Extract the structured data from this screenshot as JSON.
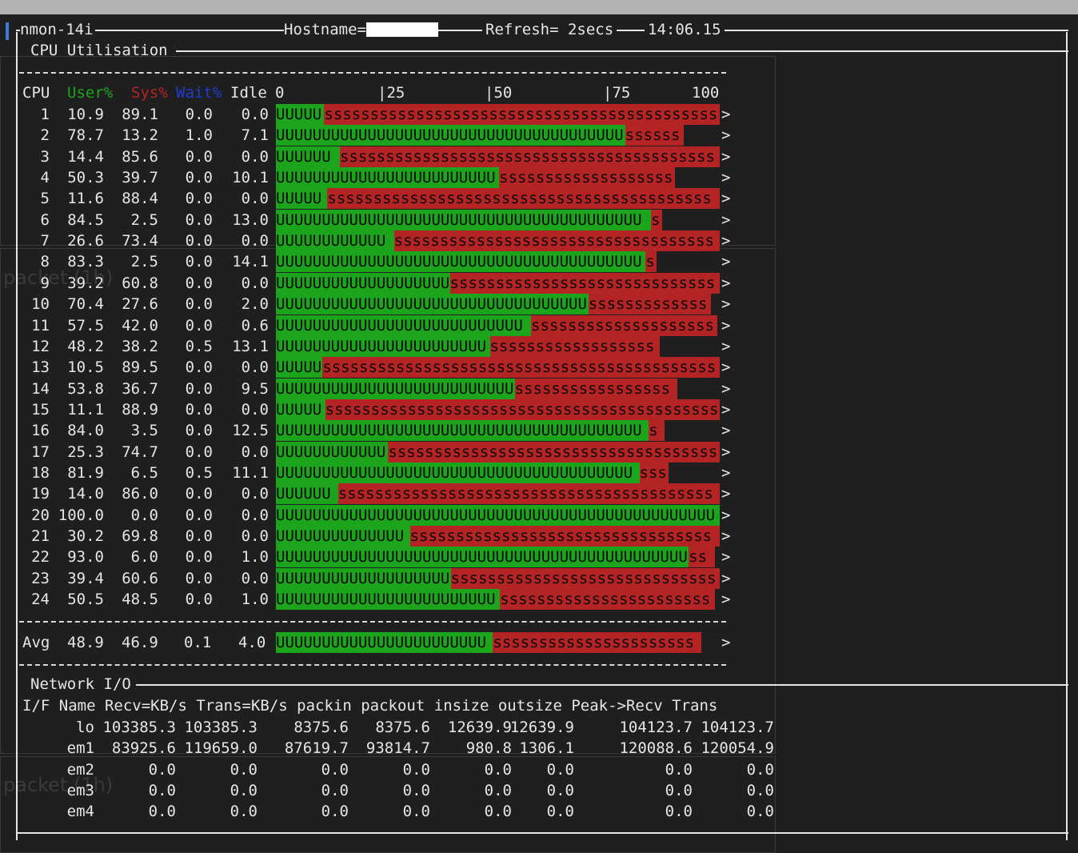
{
  "header": {
    "app": "nmon-14i",
    "hostname_label": "Hostname=",
    "refresh": "Refresh= 2secs",
    "time": "14:06.15"
  },
  "cpu": {
    "title": "CPU Utilisation",
    "headers": {
      "cpu": "CPU",
      "user": "User%",
      "sys": "Sys%",
      "wait": "Wait%",
      "idle": "Idle"
    },
    "scale": [
      "0",
      "|25",
      "|50",
      "|75",
      "100"
    ],
    "rows": [
      {
        "cpu": "1",
        "user": "10.9",
        "sys": "89.1",
        "wait": "0.0",
        "idle": "0.0",
        "u_pct": 10.9,
        "s_pct": 89.1
      },
      {
        "cpu": "2",
        "user": "78.7",
        "sys": "13.2",
        "wait": "1.0",
        "idle": "7.1",
        "u_pct": 78.7,
        "s_pct": 13.2
      },
      {
        "cpu": "3",
        "user": "14.4",
        "sys": "85.6",
        "wait": "0.0",
        "idle": "0.0",
        "u_pct": 14.4,
        "s_pct": 85.6
      },
      {
        "cpu": "4",
        "user": "50.3",
        "sys": "39.7",
        "wait": "0.0",
        "idle": "10.1",
        "u_pct": 50.3,
        "s_pct": 39.7
      },
      {
        "cpu": "5",
        "user": "11.6",
        "sys": "88.4",
        "wait": "0.0",
        "idle": "0.0",
        "u_pct": 11.6,
        "s_pct": 88.4
      },
      {
        "cpu": "6",
        "user": "84.5",
        "sys": "2.5",
        "wait": "0.0",
        "idle": "13.0",
        "u_pct": 84.5,
        "s_pct": 2.5
      },
      {
        "cpu": "7",
        "user": "26.6",
        "sys": "73.4",
        "wait": "0.0",
        "idle": "0.0",
        "u_pct": 26.6,
        "s_pct": 73.4
      },
      {
        "cpu": "8",
        "user": "83.3",
        "sys": "2.5",
        "wait": "0.0",
        "idle": "14.1",
        "u_pct": 83.3,
        "s_pct": 2.5
      },
      {
        "cpu": "9",
        "user": "39.2",
        "sys": "60.8",
        "wait": "0.0",
        "idle": "0.0",
        "u_pct": 39.2,
        "s_pct": 60.8
      },
      {
        "cpu": "10",
        "user": "70.4",
        "sys": "27.6",
        "wait": "0.0",
        "idle": "2.0",
        "u_pct": 70.4,
        "s_pct": 27.6
      },
      {
        "cpu": "11",
        "user": "57.5",
        "sys": "42.0",
        "wait": "0.0",
        "idle": "0.6",
        "u_pct": 57.5,
        "s_pct": 42.0
      },
      {
        "cpu": "12",
        "user": "48.2",
        "sys": "38.2",
        "wait": "0.5",
        "idle": "13.1",
        "u_pct": 48.2,
        "s_pct": 38.2
      },
      {
        "cpu": "13",
        "user": "10.5",
        "sys": "89.5",
        "wait": "0.0",
        "idle": "0.0",
        "u_pct": 10.5,
        "s_pct": 89.5
      },
      {
        "cpu": "14",
        "user": "53.8",
        "sys": "36.7",
        "wait": "0.0",
        "idle": "9.5",
        "u_pct": 53.8,
        "s_pct": 36.7
      },
      {
        "cpu": "15",
        "user": "11.1",
        "sys": "88.9",
        "wait": "0.0",
        "idle": "0.0",
        "u_pct": 11.1,
        "s_pct": 88.9
      },
      {
        "cpu": "16",
        "user": "84.0",
        "sys": "3.5",
        "wait": "0.0",
        "idle": "12.5",
        "u_pct": 84.0,
        "s_pct": 3.5
      },
      {
        "cpu": "17",
        "user": "25.3",
        "sys": "74.7",
        "wait": "0.0",
        "idle": "0.0",
        "u_pct": 25.3,
        "s_pct": 74.7
      },
      {
        "cpu": "18",
        "user": "81.9",
        "sys": "6.5",
        "wait": "0.5",
        "idle": "11.1",
        "u_pct": 81.9,
        "s_pct": 6.5
      },
      {
        "cpu": "19",
        "user": "14.0",
        "sys": "86.0",
        "wait": "0.0",
        "idle": "0.0",
        "u_pct": 14.0,
        "s_pct": 86.0
      },
      {
        "cpu": "20",
        "user": "100.0",
        "sys": "0.0",
        "wait": "0.0",
        "idle": "0.0",
        "u_pct": 100.0,
        "s_pct": 0.0
      },
      {
        "cpu": "21",
        "user": "30.2",
        "sys": "69.8",
        "wait": "0.0",
        "idle": "0.0",
        "u_pct": 30.2,
        "s_pct": 69.8
      },
      {
        "cpu": "22",
        "user": "93.0",
        "sys": "6.0",
        "wait": "0.0",
        "idle": "1.0",
        "u_pct": 93.0,
        "s_pct": 6.0
      },
      {
        "cpu": "23",
        "user": "39.4",
        "sys": "60.6",
        "wait": "0.0",
        "idle": "0.0",
        "u_pct": 39.4,
        "s_pct": 60.6
      },
      {
        "cpu": "24",
        "user": "50.5",
        "sys": "48.5",
        "wait": "0.0",
        "idle": "1.0",
        "u_pct": 50.5,
        "s_pct": 48.5
      }
    ],
    "avg": {
      "cpu": "Avg",
      "user": "48.9",
      "sys": "46.9",
      "wait": "0.1",
      "idle": "4.0",
      "u_pct": 48.9,
      "s_pct": 46.9
    },
    "bar_arrow": ">"
  },
  "network": {
    "title": "Network I/O",
    "header_line": "I/F Name Recv=KB/s Trans=KB/s packin packout insize outsize Peak->Recv Trans",
    "rows": [
      {
        "if": "lo",
        "recv": "103385.3",
        "trans": "103385.3",
        "packin": "8375.6",
        "packout": "8375.6",
        "insize": "12639.9",
        "outsize": "12639.9",
        "peak_recv": "104123.7",
        "peak_trans": "104123.7"
      },
      {
        "if": "em1",
        "recv": "83925.6",
        "trans": "119659.0",
        "packin": "87619.7",
        "packout": "93814.7",
        "insize": "980.8",
        "outsize": "1306.1",
        "peak_recv": "120088.6",
        "peak_trans": "120054.9"
      },
      {
        "if": "em2",
        "recv": "0.0",
        "trans": "0.0",
        "packin": "0.0",
        "packout": "0.0",
        "insize": "0.0",
        "outsize": "0.0",
        "peak_recv": "0.0",
        "peak_trans": "0.0"
      },
      {
        "if": "em3",
        "recv": "0.0",
        "trans": "0.0",
        "packin": "0.0",
        "packout": "0.0",
        "insize": "0.0",
        "outsize": "0.0",
        "peak_recv": "0.0",
        "peak_trans": "0.0"
      },
      {
        "if": "em4",
        "recv": "0.0",
        "trans": "0.0",
        "packin": "0.0",
        "packout": "0.0",
        "insize": "0.0",
        "outsize": "0.0",
        "peak_recv": "0.0",
        "peak_trans": "0.0"
      }
    ]
  },
  "background": {
    "ghost_label_1": "packet (1h)",
    "ghost_label_2": "packet (1h)"
  },
  "colors": {
    "user": "#1ca41c",
    "sys": "#b52424",
    "wait": "#1e3cd6",
    "background": "#1f1f1f",
    "text": "#e6e6e6"
  }
}
